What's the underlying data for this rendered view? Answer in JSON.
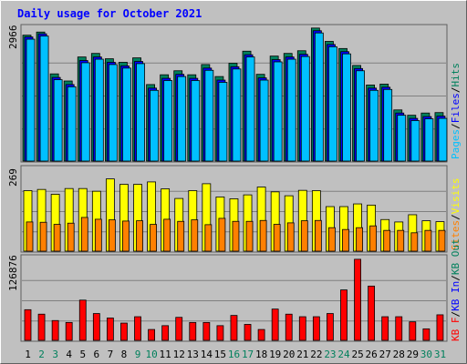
{
  "chart_data": [
    {
      "type": "bar",
      "title": "Daily usage for October 2021",
      "ylabel_top": "2966",
      "y_max": 2966,
      "categories": [
        "1",
        "2",
        "3",
        "4",
        "5",
        "6",
        "7",
        "8",
        "9",
        "10",
        "11",
        "12",
        "13",
        "14",
        "15",
        "16",
        "17",
        "18",
        "19",
        "20",
        "21",
        "22",
        "23",
        "24",
        "25",
        "26",
        "27",
        "28",
        "29",
        "30",
        "31"
      ],
      "weekend_days": [
        "2",
        "3",
        "9",
        "10",
        "16",
        "17",
        "23",
        "24",
        "30",
        "31"
      ],
      "legend": [
        "Hits",
        "Files",
        "Pages"
      ],
      "series": [
        {
          "name": "Hits",
          "values": [
            2830,
            2900,
            1960,
            1800,
            2340,
            2420,
            2300,
            2220,
            2320,
            1720,
            1940,
            2030,
            1940,
            2170,
            1900,
            2200,
            2470,
            1950,
            2360,
            2420,
            2480,
            2990,
            2690,
            2530,
            2150,
            1710,
            1730,
            1150,
            1030,
            1080,
            1090
          ]
        },
        {
          "name": "Files",
          "values": [
            2790,
            2860,
            1880,
            1720,
            2260,
            2340,
            2220,
            2140,
            2240,
            1640,
            1860,
            1950,
            1860,
            2090,
            1820,
            2120,
            2390,
            1870,
            2280,
            2340,
            2400,
            2930,
            2620,
            2460,
            2080,
            1640,
            1660,
            1080,
            960,
            1000,
            1010
          ]
        },
        {
          "name": "Pages",
          "values": [
            2740,
            2810,
            1830,
            1670,
            2210,
            2290,
            2170,
            2090,
            2190,
            1590,
            1810,
            1900,
            1810,
            2040,
            1770,
            2070,
            2340,
            1820,
            2230,
            2290,
            2350,
            2880,
            2570,
            2410,
            2030,
            1590,
            1610,
            1030,
            910,
            950,
            960
          ]
        }
      ],
      "colors": {
        "Hits": "#00805c",
        "Files": "#0000ff",
        "Pages": "#00c0ff"
      }
    },
    {
      "type": "bar",
      "ylabel_top": "269",
      "y_max": 269,
      "legend": [
        "Visits",
        "Sites"
      ],
      "series": [
        {
          "name": "Visits",
          "values": [
            201,
            205,
            189,
            208,
            208,
            199,
            240,
            222,
            222,
            230,
            207,
            175,
            201,
            224,
            180,
            174,
            187,
            213,
            197,
            184,
            202,
            201,
            148,
            148,
            157,
            153,
            105,
            97,
            121,
            101,
            98
          ]
        },
        {
          "name": "Sites",
          "values": [
            97,
            96,
            89,
            93,
            112,
            106,
            104,
            100,
            101,
            89,
            106,
            99,
            104,
            88,
            109,
            99,
            99,
            102,
            89,
            94,
            101,
            102,
            78,
            72,
            78,
            84,
            69,
            69,
            61,
            69,
            69
          ]
        }
      ],
      "colors": {
        "Visits": "#ffff00",
        "Sites": "#ff8000"
      }
    },
    {
      "type": "bar",
      "ylabel_top": "126876",
      "y_max": 126876,
      "legend": [
        "KB F",
        "KB In",
        "KB Out"
      ],
      "series": [
        {
          "name": "KB F",
          "values": [
            48000,
            41000,
            31000,
            28000,
            63000,
            42000,
            35000,
            27000,
            37000,
            17000,
            23000,
            36000,
            28000,
            28000,
            23000,
            39000,
            25000,
            17000,
            49000,
            41000,
            37000,
            37000,
            42000,
            79000,
            127000,
            85000,
            37000,
            37000,
            29000,
            18000,
            40000
          ]
        }
      ],
      "colors": {
        "KB F": "#ff0000",
        "KB In": "#0000ff",
        "KB Out": "#00805c"
      }
    }
  ]
}
